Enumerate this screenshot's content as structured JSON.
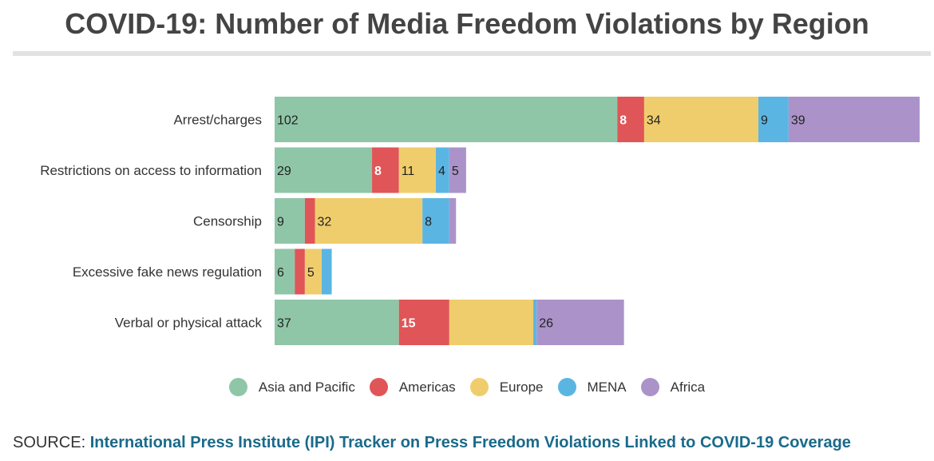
{
  "title": "COVID-19: Number of Media Freedom Violations by Region",
  "source": {
    "prefix": "SOURCE:",
    "link_text": "International Press Institute (IPI) Tracker on Press Freedom Violations Linked to COVID-19 Coverage"
  },
  "chart_data": {
    "type": "bar",
    "orientation": "horizontal",
    "stacked": true,
    "categories": [
      "Arrest/charges",
      "Restrictions on access to information",
      "Censorship",
      "Excessive fake news regulation",
      "Verbal or physical attack"
    ],
    "series": [
      {
        "name": "Asia and Pacific",
        "color": "#8fc6a8",
        "values": [
          102,
          29,
          9,
          6,
          37
        ],
        "labels": [
          "102",
          "29",
          "9",
          "6",
          "37"
        ]
      },
      {
        "name": "Americas",
        "color": "#e05557",
        "values": [
          8,
          8,
          3,
          3,
          15
        ],
        "labels": [
          "8",
          "8",
          "",
          "",
          "15"
        ]
      },
      {
        "name": "Europe",
        "color": "#f0cd6c",
        "values": [
          34,
          11,
          32,
          5,
          25
        ],
        "labels": [
          "34",
          "11",
          "32",
          "5",
          ""
        ]
      },
      {
        "name": "MENA",
        "color": "#5bb5e3",
        "values": [
          9,
          4,
          8,
          3,
          1
        ],
        "labels": [
          "9",
          "4",
          "8",
          "",
          ""
        ]
      },
      {
        "name": "Africa",
        "color": "#ab93c9",
        "values": [
          39,
          5,
          2,
          0,
          26
        ],
        "labels": [
          "39",
          "5",
          "",
          "",
          "26"
        ]
      }
    ],
    "xlim": [
      0,
      192
    ],
    "grid": false,
    "legend_position": "bottom"
  }
}
